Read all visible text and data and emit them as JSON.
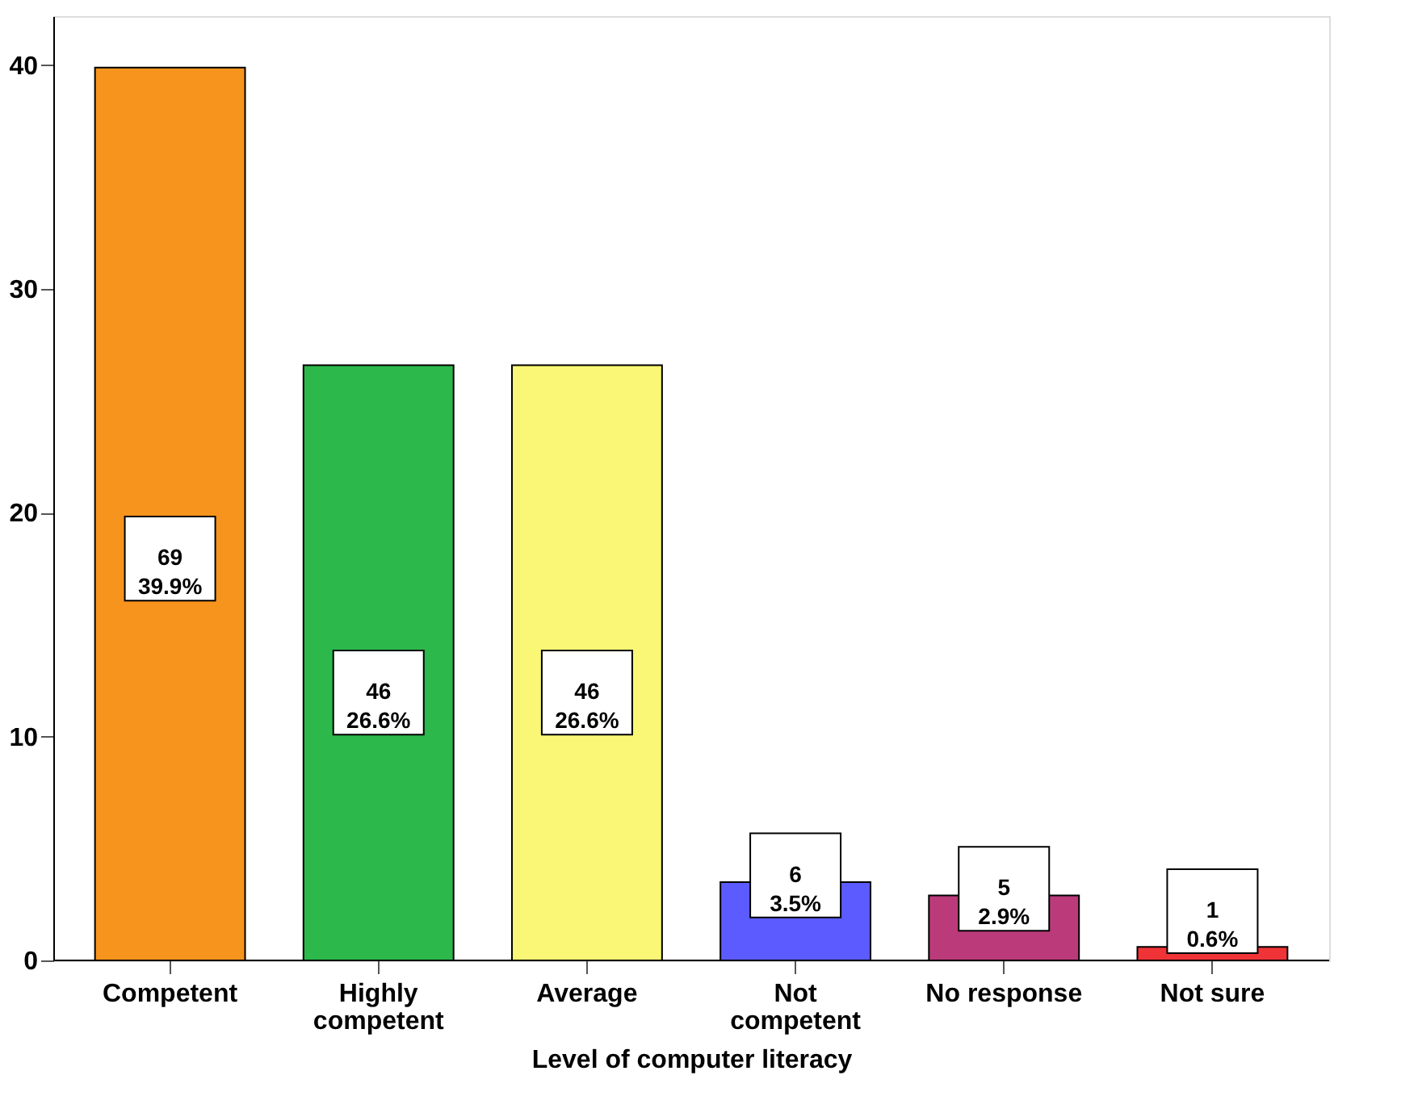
{
  "chart_data": {
    "type": "bar",
    "xlabel": "Level of computer literacy",
    "categories": [
      "Competent",
      "Highly competent",
      "Average",
      "Not competent",
      "No response",
      "Not sure"
    ],
    "values": [
      39.9,
      26.6,
      26.6,
      3.5,
      2.9,
      0.6
    ],
    "colors": [
      "#f7941d",
      "#2db84b",
      "#f9f775",
      "#5b5bff",
      "#bb3b7a",
      "#ef3337"
    ],
    "value_labels": [
      "69\n39.9%",
      "46\n26.6%",
      "46\n26.6%",
      "6\n3.5%",
      "5\n2.9%",
      "1\n0.6%"
    ],
    "ylim": [
      0,
      42.2
    ],
    "yticks": [
      0,
      10,
      20,
      30,
      40
    ],
    "grid": false
  }
}
